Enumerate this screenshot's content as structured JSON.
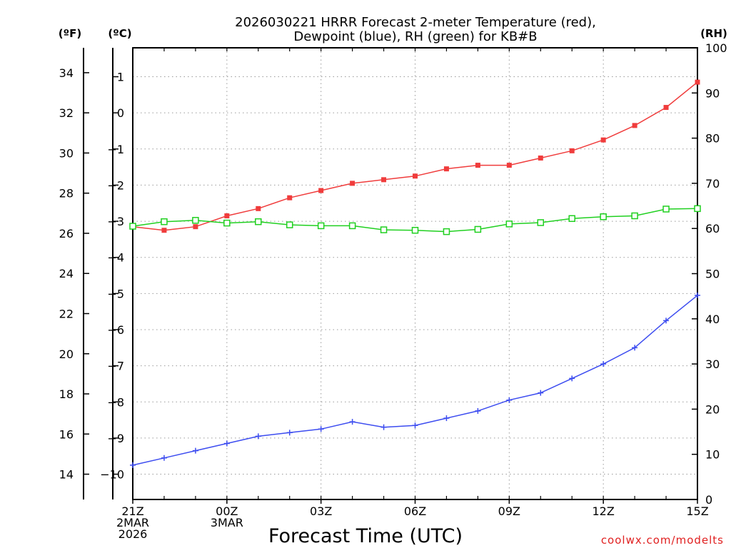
{
  "chart_data": {
    "type": "line",
    "title_line1": "2026030221 HRRR Forecast 2-meter Temperature (red),",
    "title_line2": "Dewpoint (blue), RH (green) for KB#B",
    "xlabel": "Forecast Time (UTC)",
    "credit": "coolwx.com/modelts",
    "left_axis_f_label": "(ºF)",
    "left_axis_c_label": "(ºC)",
    "right_axis_label": "(RH)",
    "x_hours": [
      0,
      1,
      2,
      3,
      4,
      5,
      6,
      7,
      8,
      9,
      10,
      11,
      12,
      13,
      14,
      15,
      16,
      17,
      18
    ],
    "x_ticks": [
      {
        "hour": 0,
        "lines": [
          "21Z",
          "2MAR",
          "2026"
        ]
      },
      {
        "hour": 3,
        "lines": [
          "00Z",
          "3MAR"
        ]
      },
      {
        "hour": 6,
        "lines": [
          "03Z"
        ]
      },
      {
        "hour": 9,
        "lines": [
          "06Z"
        ]
      },
      {
        "hour": 12,
        "lines": [
          "09Z"
        ]
      },
      {
        "hour": 15,
        "lines": [
          "12Z"
        ]
      },
      {
        "hour": 18,
        "lines": [
          "15Z"
        ]
      }
    ],
    "celsius_range": [
      -10.7,
      1.8
    ],
    "celsius_ticks": [
      1,
      0,
      -1,
      -2,
      -3,
      -4,
      -5,
      -6,
      -7,
      -8,
      -9,
      -10
    ],
    "fahrenheit_ticks": [
      34,
      32,
      30,
      28,
      26,
      24,
      22,
      20,
      18,
      16,
      14
    ],
    "rh_range": [
      0,
      100
    ],
    "rh_ticks": [
      100,
      90,
      80,
      70,
      60,
      50,
      40,
      30,
      20,
      10,
      0
    ],
    "series": [
      {
        "name": "Temperature",
        "axis": "celsius",
        "color": "#f03c3c",
        "marker": "filled-square",
        "values": [
          -3.15,
          -3.25,
          -3.15,
          -2.85,
          -2.65,
          -2.35,
          -2.15,
          -1.95,
          -1.85,
          -1.75,
          -1.55,
          -1.45,
          -1.45,
          -1.25,
          -1.05,
          -0.75,
          -0.35,
          0.15,
          0.85
        ]
      },
      {
        "name": "Dewpoint",
        "axis": "celsius",
        "color": "#3c4cf0",
        "marker": "plus",
        "values": [
          -9.75,
          -9.55,
          -9.35,
          -9.15,
          -8.95,
          -8.85,
          -8.75,
          -8.55,
          -8.7,
          -8.65,
          -8.45,
          -8.25,
          -7.95,
          -7.75,
          -7.35,
          -6.95,
          -6.5,
          -5.75,
          -5.05
        ]
      },
      {
        "name": "RH",
        "axis": "rh",
        "color": "#20d020",
        "marker": "open-square",
        "values": [
          60.5,
          61.5,
          61.8,
          61.2,
          61.5,
          60.8,
          60.6,
          60.6,
          59.7,
          59.6,
          59.3,
          59.8,
          61.0,
          61.3,
          62.2,
          62.6,
          62.8,
          64.3,
          64.4
        ]
      }
    ]
  }
}
